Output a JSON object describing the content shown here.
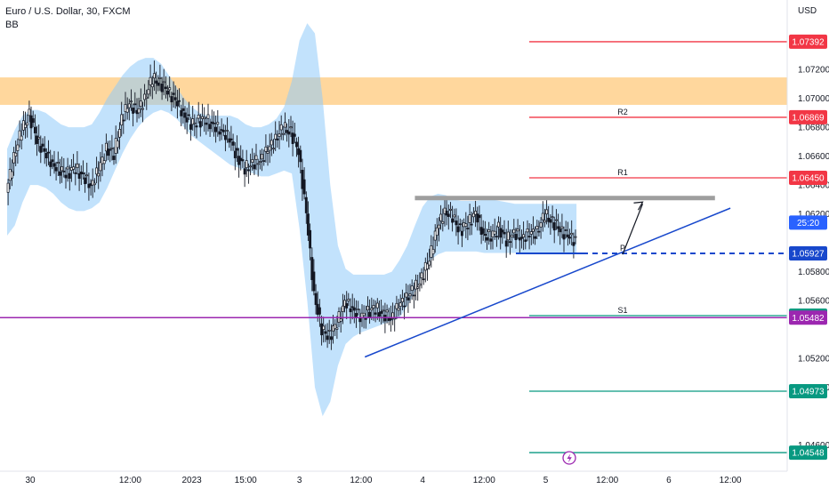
{
  "header": {
    "symbol": "Euro / U.S. Dollar, 30, FXCM",
    "indicator": "BB"
  },
  "chart_data": {
    "type": "candlestick",
    "currency": "USD",
    "ylim": [
      1.0445,
      1.0765
    ],
    "y_ticks": [
      {
        "v": 1.072,
        "label": "1.07200"
      },
      {
        "v": 1.07,
        "label": "1.07000"
      },
      {
        "v": 1.068,
        "label": "1.06800"
      },
      {
        "v": 1.066,
        "label": "1.06600"
      },
      {
        "v": 1.064,
        "label": "1.06400"
      },
      {
        "v": 1.062,
        "label": "1.06200"
      },
      {
        "v": 1.058,
        "label": "1.05800"
      },
      {
        "v": 1.056,
        "label": "1.05600"
      },
      {
        "v": 1.052,
        "label": "1.05200"
      },
      {
        "v": 1.05,
        "label": "1.05000"
      },
      {
        "v": 1.046,
        "label": "1.04600"
      }
    ],
    "x_ticks": [
      {
        "i": 3,
        "label": "30"
      },
      {
        "i": 16,
        "label": "12:00"
      },
      {
        "i": 24,
        "label": "2023"
      },
      {
        "i": 31,
        "label": "15:00"
      },
      {
        "i": 38,
        "label": "3"
      },
      {
        "i": 46,
        "label": "12:00"
      },
      {
        "i": 54,
        "label": "4"
      },
      {
        "i": 62,
        "label": "12:00"
      },
      {
        "i": 70,
        "label": "5"
      },
      {
        "i": 78,
        "label": "12:00"
      },
      {
        "i": 86,
        "label": "6"
      },
      {
        "i": 94,
        "label": "12:00"
      }
    ],
    "close": [
      1.0635,
      1.066,
      1.0678,
      1.0688,
      1.0672,
      1.0662,
      1.0655,
      1.065,
      1.0648,
      1.0652,
      1.0645,
      1.064,
      1.065,
      1.0665,
      1.0662,
      1.0685,
      1.0698,
      1.069,
      1.07,
      1.0714,
      1.071,
      1.0706,
      1.0698,
      1.069,
      1.0682,
      1.0684,
      1.0686,
      1.068,
      1.0678,
      1.0672,
      1.066,
      1.0652,
      1.0654,
      1.0658,
      1.0664,
      1.0672,
      1.068,
      1.0676,
      1.0664,
      1.062,
      1.0565,
      1.054,
      1.0535,
      1.0545,
      1.0558,
      1.0555,
      1.0548,
      1.0552,
      1.0555,
      1.055,
      1.0548,
      1.0556,
      1.0562,
      1.0568,
      1.0575,
      1.059,
      1.061,
      1.0622,
      1.0618,
      1.0608,
      1.0614,
      1.062,
      1.0606,
      1.0604,
      1.061,
      1.0602,
      1.0606,
      1.0604,
      1.0606,
      1.0608,
      1.062,
      1.0614,
      1.061,
      1.0604,
      1.0602
    ],
    "bb_upper": [
      1.0665,
      1.0678,
      1.0688,
      1.0692,
      1.0692,
      1.069,
      1.0686,
      1.0682,
      1.068,
      1.068,
      1.068,
      1.0682,
      1.069,
      1.07,
      1.0708,
      1.0716,
      1.0722,
      1.0726,
      1.0728,
      1.0728,
      1.0724,
      1.0716,
      1.0708,
      1.07,
      1.0694,
      1.069,
      1.0688,
      1.0688,
      1.0688,
      1.0688,
      1.0686,
      1.0682,
      1.068,
      1.068,
      1.0682,
      1.0686,
      1.0694,
      1.0712,
      1.074,
      1.0752,
      1.0745,
      1.07,
      1.064,
      1.0598,
      1.0582,
      1.0578,
      1.0578,
      1.0578,
      1.0578,
      1.0578,
      1.058,
      1.0588,
      1.0598,
      1.0612,
      1.0625,
      1.0632,
      1.0634,
      1.0633,
      1.063,
      1.0629,
      1.0629,
      1.0629,
      1.063,
      1.063,
      1.0629,
      1.0628,
      1.0627,
      1.0627,
      1.0627,
      1.0627,
      1.0627,
      1.0627,
      1.0627,
      1.0627,
      1.0627
    ],
    "bb_lower": [
      1.0605,
      1.0612,
      1.0628,
      1.064,
      1.064,
      1.0638,
      1.0634,
      1.0628,
      1.0624,
      1.0622,
      1.0622,
      1.0624,
      1.0628,
      1.0638,
      1.065,
      1.0662,
      1.0672,
      1.068,
      1.0686,
      1.069,
      1.0692,
      1.069,
      1.0686,
      1.068,
      1.0674,
      1.067,
      1.0666,
      1.0662,
      1.0658,
      1.0654,
      1.0652,
      1.065,
      1.0648,
      1.0646,
      1.0646,
      1.0648,
      1.065,
      1.0648,
      1.061,
      1.056,
      1.05,
      1.048,
      1.049,
      1.0515,
      1.053,
      1.0535,
      1.0538,
      1.054,
      1.0542,
      1.0544,
      1.0546,
      1.0548,
      1.0556,
      1.0566,
      1.0578,
      1.0588,
      1.0592,
      1.0594,
      1.0594,
      1.0594,
      1.0594,
      1.0594,
      1.0593,
      1.0593,
      1.0593,
      1.0593,
      1.0593,
      1.0593,
      1.0593,
      1.0593,
      1.0593,
      1.0593,
      1.0593,
      1.0593,
      1.0593
    ],
    "resistance_zone": {
      "from": 1.06955,
      "to": 1.07145,
      "color": "#ffb74d"
    },
    "resistance_line": {
      "value": 1.0631,
      "from_i": 53,
      "to_i": 92,
      "color": "#9e9e9e"
    },
    "levels": [
      {
        "value": 1.07392,
        "label": "",
        "tag": "1.07392",
        "color": "#f23645",
        "dashed": false
      },
      {
        "value": 1.06869,
        "label": "R2",
        "tag": "1.06869",
        "color": "#f23645",
        "dashed": false
      },
      {
        "value": 1.0645,
        "label": "R1",
        "tag": "1.06450",
        "color": "#f23645",
        "dashed": false
      },
      {
        "value": 1.05927,
        "label": "P",
        "tag": "1.05927",
        "color": "#1848cc",
        "dashed": true
      },
      {
        "value": 1.05496,
        "label": "S1",
        "tag": "1.05496",
        "color": "#089981",
        "dashed": false
      },
      {
        "value": 1.04973,
        "label": "",
        "tag": "1.04973",
        "color": "#089981",
        "dashed": false
      },
      {
        "value": 1.04548,
        "label": "",
        "tag": "1.04548",
        "color": "#089981",
        "dashed": false
      }
    ],
    "horizontal_line": {
      "value": 1.05482,
      "tag": "1.05482",
      "color": "#9c27b0"
    },
    "countdown": {
      "label": "25:20",
      "value": 1.0605,
      "color": "#2962ff"
    },
    "trendline": {
      "from_i": 46.5,
      "from_v": 1.0521,
      "to_i": 94,
      "to_v": 1.0624,
      "color": "#1848cc"
    },
    "arrow": {
      "points": [
        [
          80,
          1.0592
        ],
        [
          82.6,
          1.0627
        ],
        [
          83.5,
          1.0631
        ]
      ],
      "color": "#131722"
    },
    "ignore": null
  }
}
